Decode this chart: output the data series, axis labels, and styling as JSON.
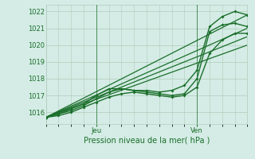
{
  "xlabel": "Pression niveau de la mer( hPa )",
  "bg_color": "#d4ece5",
  "grid_color": "#b0ccbb",
  "line_color": "#1a6e2a",
  "ylim": [
    1015.3,
    1022.4
  ],
  "xlim": [
    0,
    48
  ],
  "yticks": [
    1016,
    1017,
    1018,
    1019,
    1020,
    1021,
    1022
  ],
  "xtick_positions": [
    12,
    36
  ],
  "xtick_labels": [
    "Jeu",
    "Ven"
  ],
  "vline_positions": [
    12,
    36
  ],
  "series": [
    {
      "x": [
        0,
        48
      ],
      "y": [
        1015.7,
        1021.8
      ],
      "marker": false,
      "lw": 0.9
    },
    {
      "x": [
        0,
        48
      ],
      "y": [
        1015.7,
        1021.0
      ],
      "marker": false,
      "lw": 0.9
    },
    {
      "x": [
        0,
        48
      ],
      "y": [
        1015.7,
        1020.5
      ],
      "marker": false,
      "lw": 0.9
    },
    {
      "x": [
        0,
        48
      ],
      "y": [
        1015.7,
        1020.0
      ],
      "marker": false,
      "lw": 0.9
    },
    {
      "x": [
        0,
        3,
        6,
        9,
        12,
        15,
        18,
        21,
        24,
        27,
        30,
        33,
        36,
        39,
        42,
        45,
        48
      ],
      "y": [
        1015.7,
        1015.9,
        1016.2,
        1016.5,
        1017.0,
        1017.4,
        1017.4,
        1017.3,
        1017.3,
        1017.2,
        1017.3,
        1017.6,
        1018.5,
        1021.1,
        1021.7,
        1022.0,
        1021.8
      ],
      "marker": true,
      "lw": 1.0
    },
    {
      "x": [
        0,
        3,
        6,
        9,
        12,
        15,
        18,
        21,
        24,
        27,
        30,
        33,
        36,
        39,
        42,
        45,
        48
      ],
      "y": [
        1015.7,
        1015.9,
        1016.1,
        1016.4,
        1016.8,
        1017.2,
        1017.4,
        1017.3,
        1017.2,
        1017.1,
        1017.0,
        1017.1,
        1018.0,
        1020.8,
        1021.2,
        1021.3,
        1021.1
      ],
      "marker": true,
      "lw": 1.0
    },
    {
      "x": [
        0,
        3,
        6,
        9,
        12,
        15,
        18,
        21,
        24,
        27,
        30,
        33,
        36,
        39,
        42,
        45,
        48
      ],
      "y": [
        1015.7,
        1015.8,
        1016.0,
        1016.3,
        1016.6,
        1016.9,
        1017.1,
        1017.2,
        1017.1,
        1017.0,
        1016.9,
        1017.0,
        1017.5,
        1019.5,
        1020.3,
        1020.7,
        1020.7
      ],
      "marker": true,
      "lw": 1.0
    }
  ]
}
